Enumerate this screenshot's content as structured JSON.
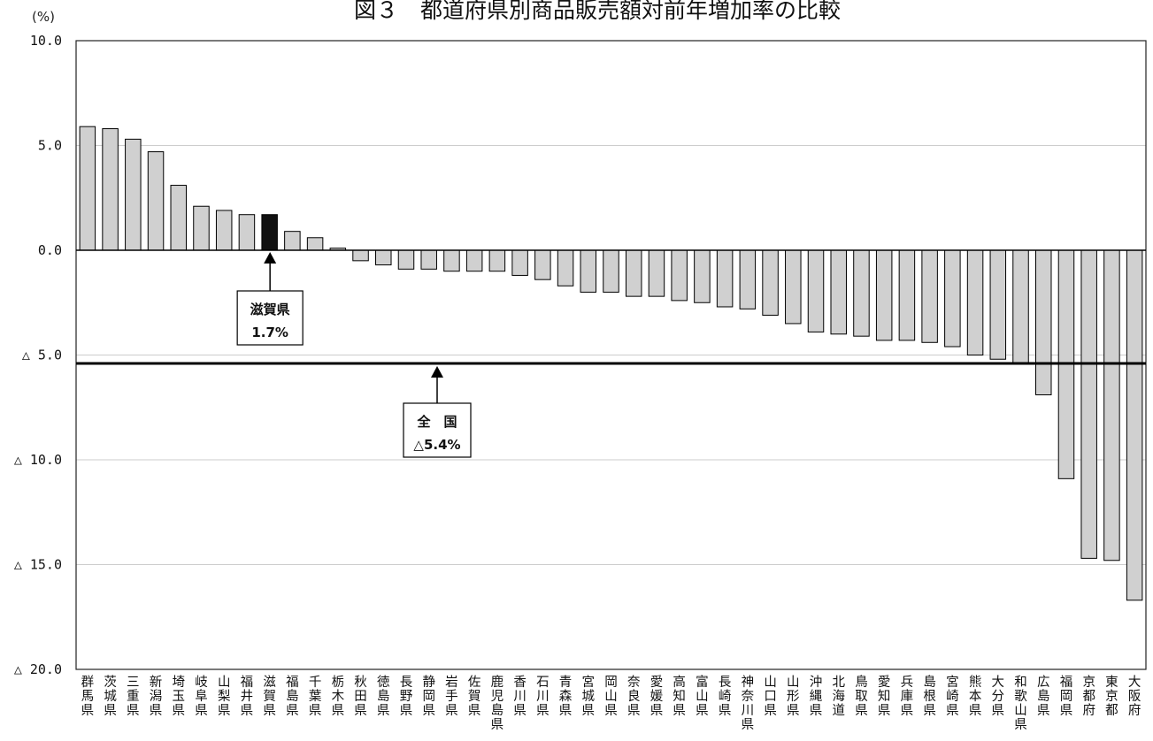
{
  "chart_data": {
    "type": "bar",
    "title": "図３　都道府県別商品販売額対前年増加率の比較",
    "unit_label": "(%)",
    "ylim": [
      -20,
      10
    ],
    "yticks": [
      10,
      5,
      0,
      -5,
      -10,
      -15,
      -20
    ],
    "ytick_labels": [
      "10.0",
      "5.0",
      "0.0",
      "△ 5.0",
      "△ 10.0",
      "△ 15.0",
      "△ 20.0"
    ],
    "grid": true,
    "categories": [
      "群馬県",
      "茨城県",
      "三重県",
      "新潟県",
      "埼玉県",
      "岐阜県",
      "山梨県",
      "福井県",
      "滋賀県",
      "福島県",
      "千葉県",
      "栃木県",
      "秋田県",
      "徳島県",
      "長野県",
      "静岡県",
      "岩手県",
      "佐賀県",
      "鹿児島県",
      "香川県",
      "石川県",
      "青森県",
      "宮城県",
      "岡山県",
      "奈良県",
      "愛媛県",
      "高知県",
      "富山県",
      "長崎県",
      "神奈川県",
      "山口県",
      "山形県",
      "沖縄県",
      "北海道",
      "鳥取県",
      "愛知県",
      "兵庫県",
      "島根県",
      "宮崎県",
      "熊本県",
      "大分県",
      "和歌山県",
      "広島県",
      "福岡県",
      "京都府",
      "東京都",
      "大阪府"
    ],
    "values": [
      5.9,
      5.8,
      5.3,
      4.7,
      3.1,
      2.1,
      1.9,
      1.7,
      1.7,
      0.9,
      0.6,
      0.1,
      -0.5,
      -0.7,
      -0.9,
      -0.9,
      -1.0,
      -1.0,
      -1.0,
      -1.2,
      -1.4,
      -1.7,
      -2.0,
      -2.0,
      -2.2,
      -2.2,
      -2.4,
      -2.5,
      -2.7,
      -2.8,
      -3.1,
      -3.5,
      -3.9,
      -4.0,
      -4.1,
      -4.3,
      -4.3,
      -4.4,
      -4.6,
      -5.0,
      -5.2,
      -5.4,
      -6.9,
      -10.9,
      -14.7,
      -14.8,
      -16.7
    ],
    "highlight": "滋賀県",
    "bar_color": "#d0d0d0",
    "highlight_color": "#111111",
    "reference_line": {
      "value": -5.4
    },
    "annotations": [
      {
        "line1": "滋賀県",
        "line2": "1.7%"
      },
      {
        "line1": "全　国",
        "line2": "△5.4%"
      }
    ]
  }
}
